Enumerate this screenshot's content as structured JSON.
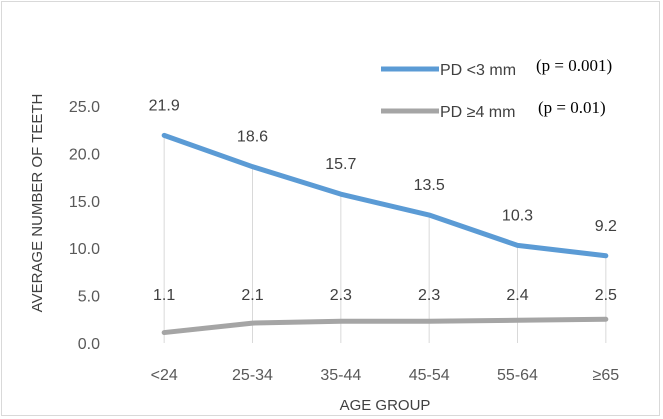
{
  "chart_data": {
    "type": "line",
    "title": "",
    "xlabel": "AGE GROUP",
    "ylabel": "AVERAGE NUMBER OF TEETH",
    "categories": [
      "<24",
      "25-34",
      "35-44",
      "45-54",
      "55-64",
      "≥65"
    ],
    "ylim": [
      0,
      25
    ],
    "yticks": [
      "0.0",
      "5.0",
      "10.0",
      "15.0",
      "20.0",
      "25.0"
    ],
    "grid": false,
    "drop_lines": true,
    "legend_position": "top-right",
    "series": [
      {
        "name": "PD <3 mm",
        "p_note": "(p = 0.001)",
        "color": "#5b9bd5",
        "values": [
          21.9,
          18.6,
          15.7,
          13.5,
          10.3,
          9.2
        ],
        "labels": [
          "21.9",
          "18.6",
          "15.7",
          "13.5",
          "10.3",
          "9.2"
        ]
      },
      {
        "name": "PD ≥4 mm",
        "p_note": "(p = 0.01)",
        "color": "#a5a5a5",
        "values": [
          1.1,
          2.1,
          2.3,
          2.3,
          2.4,
          2.5
        ],
        "labels": [
          "1.1",
          "2.1",
          "2.3",
          "2.3",
          "2.4",
          "2.5"
        ]
      }
    ]
  }
}
